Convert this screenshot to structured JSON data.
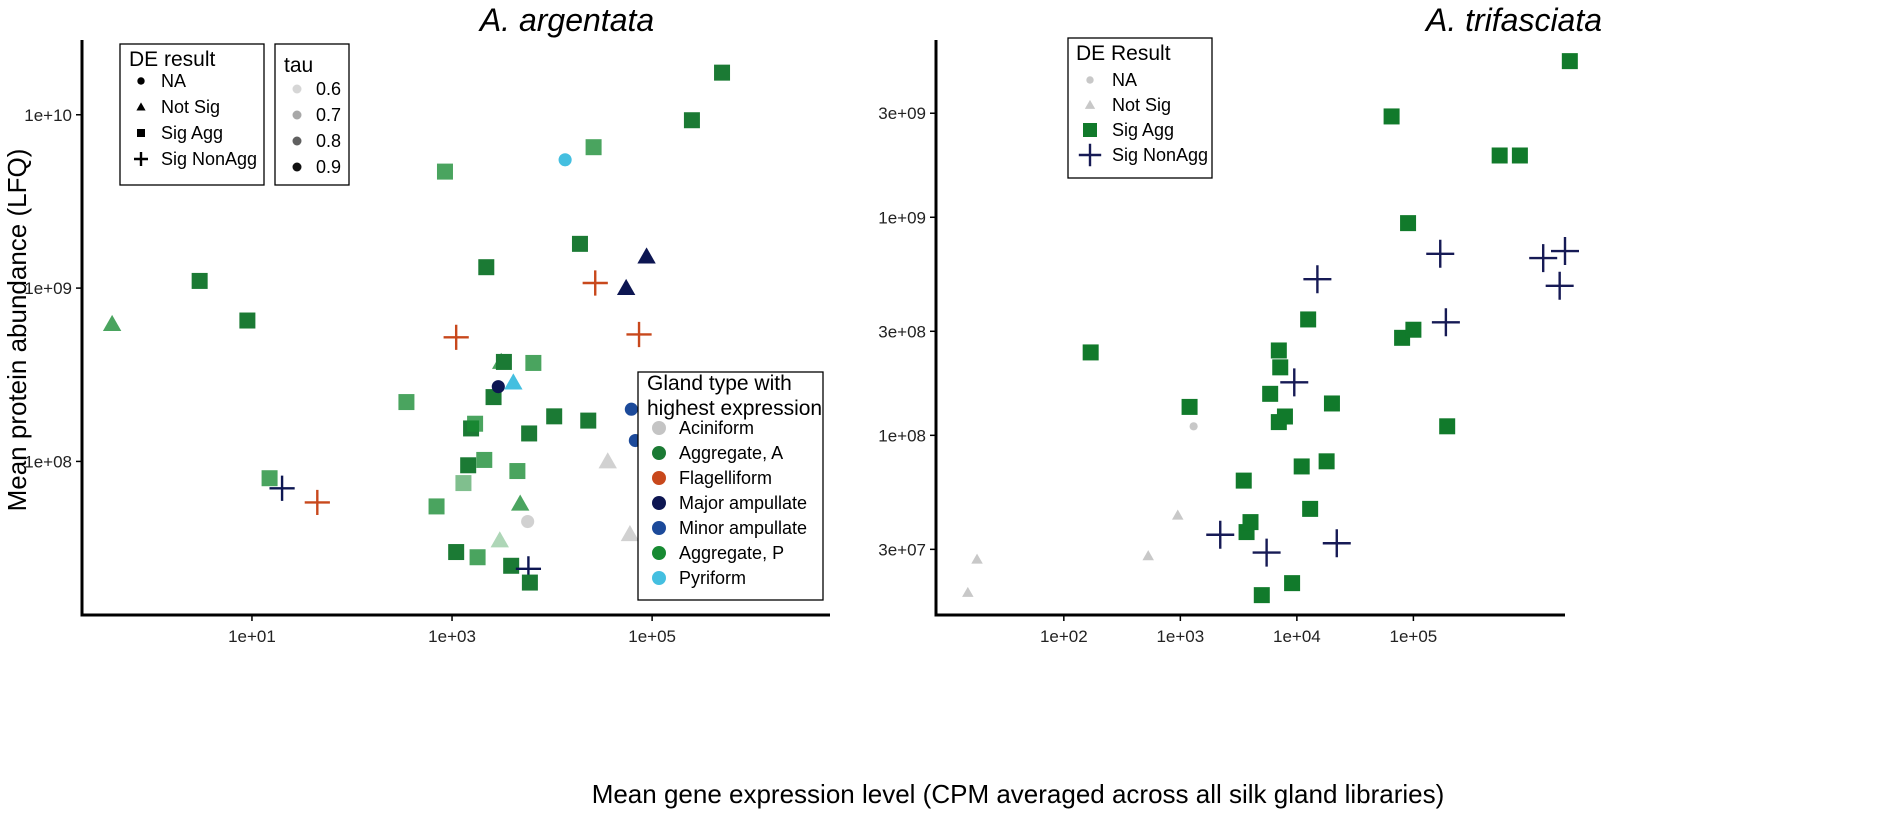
{
  "colors": {
    "Aciniform": "#c4c4c4",
    "Aggregate, A": "#1b7a34",
    "Flagelliform": "#c8481c",
    "Major ampullate": "#0d1652",
    "Minor ampullate": "#1c4a9a",
    "Aggregate, P": "#178a32",
    "Pyriform": "#44bfe0",
    "trif_grey": "#c8c8c8",
    "trif_green": "#117a2b",
    "trif_navy": "#161a55"
  },
  "chart_data": [
    {
      "type": "scatter",
      "title": "A. argentata",
      "xlabel": "Mean gene expression level (CPM averaged across all silk gland libraries)",
      "ylabel": "Mean protein abundance (LFQ)",
      "xscale": "log10",
      "yscale": "log10",
      "xlim": [
        0.2,
        6000000
      ],
      "ylim": [
        13000000,
        27000000000
      ],
      "xticks": [
        10,
        1000,
        100000
      ],
      "xtick_labels": [
        "1e+01",
        "1e+03",
        "1e+05"
      ],
      "yticks": [
        100000000,
        1000000000,
        10000000000
      ],
      "ytick_labels": [
        "1e+08",
        "1e+09",
        "1e+10"
      ],
      "legends": {
        "de": {
          "title": "DE result",
          "items": [
            {
              "label": "NA",
              "shape": "circle"
            },
            {
              "label": "Not Sig",
              "shape": "triangle"
            },
            {
              "label": "Sig Agg",
              "shape": "square"
            },
            {
              "label": "Sig NonAgg",
              "shape": "plus"
            }
          ]
        },
        "tau": {
          "title": "tau",
          "items": [
            {
              "label": "0.6",
              "shade": "#d6d6d6"
            },
            {
              "label": "0.7",
              "shade": "#a8a8a8"
            },
            {
              "label": "0.8",
              "shade": "#606060"
            },
            {
              "label": "0.9",
              "shade": "#111111"
            }
          ]
        },
        "gland": {
          "title_lines": [
            "Gland type with",
            "highest expression"
          ],
          "items": [
            "Aciniform",
            "Aggregate, A",
            "Flagelliform",
            "Major ampullate",
            "Minor ampullate",
            "Aggregate, P",
            "Pyriform"
          ]
        }
      },
      "points": [
        {
          "x": 0.4,
          "y": 620000000,
          "shape": "triangle",
          "gland": "Aggregate, P",
          "tau": 0.8
        },
        {
          "x": 3,
          "y": 1100000000,
          "shape": "square",
          "gland": "Aggregate, A",
          "tau": 0.9
        },
        {
          "x": 9,
          "y": 650000000,
          "shape": "square",
          "gland": "Aggregate, A",
          "tau": 0.9
        },
        {
          "x": 15,
          "y": 80000000,
          "shape": "square",
          "gland": "Aggregate, P",
          "tau": 0.8
        },
        {
          "x": 20,
          "y": 70000000,
          "shape": "plus",
          "gland": "Major ampullate",
          "tau": 0.9
        },
        {
          "x": 45,
          "y": 58000000,
          "shape": "plus",
          "gland": "Flagelliform",
          "tau": 0.9
        },
        {
          "x": 350,
          "y": 220000000,
          "shape": "square",
          "gland": "Aggregate, P",
          "tau": 0.8
        },
        {
          "x": 700,
          "y": 55000000,
          "shape": "square",
          "gland": "Aggregate, P",
          "tau": 0.8
        },
        {
          "x": 850,
          "y": 4700000000,
          "shape": "square",
          "gland": "Aggregate, P",
          "tau": 0.8
        },
        {
          "x": 1100,
          "y": 30000000,
          "shape": "square",
          "gland": "Aggregate, A",
          "tau": 0.9
        },
        {
          "x": 1100,
          "y": 520000000,
          "shape": "plus",
          "gland": "Flagelliform",
          "tau": 0.9
        },
        {
          "x": 1300,
          "y": 75000000,
          "shape": "square",
          "gland": "Aggregate, P",
          "tau": 0.7
        },
        {
          "x": 1450,
          "y": 95000000,
          "shape": "square",
          "gland": "Aggregate, A",
          "tau": 0.9
        },
        {
          "x": 1550,
          "y": 155000000,
          "shape": "square",
          "gland": "Aggregate, A",
          "tau": 0.9
        },
        {
          "x": 1700,
          "y": 165000000,
          "shape": "square",
          "gland": "Aggregate, P",
          "tau": 0.8
        },
        {
          "x": 1800,
          "y": 28000000,
          "shape": "square",
          "gland": "Aggregate, P",
          "tau": 0.8
        },
        {
          "x": 2100,
          "y": 102000000,
          "shape": "square",
          "gland": "Aggregate, P",
          "tau": 0.8
        },
        {
          "x": 2200,
          "y": 1320000000,
          "shape": "square",
          "gland": "Aggregate, A",
          "tau": 0.9
        },
        {
          "x": 2600,
          "y": 235000000,
          "shape": "square",
          "gland": "Aggregate, A",
          "tau": 0.9
        },
        {
          "x": 2900,
          "y": 270000000,
          "shape": "circle",
          "gland": "Major ampullate",
          "tau": 0.9
        },
        {
          "x": 3000,
          "y": 35000000,
          "shape": "triangle",
          "gland": "Aggregate, P",
          "tau": 0.6
        },
        {
          "x": 3100,
          "y": 375000000,
          "shape": "triangle",
          "gland": "Aggregate, P",
          "tau": 0.8
        },
        {
          "x": 3300,
          "y": 375000000,
          "shape": "square",
          "gland": "Aggregate, A",
          "tau": 0.9
        },
        {
          "x": 3900,
          "y": 25000000,
          "shape": "square",
          "gland": "Aggregate, A",
          "tau": 0.9
        },
        {
          "x": 4100,
          "y": 285000000,
          "shape": "triangle",
          "gland": "Pyriform",
          "tau": 0.9
        },
        {
          "x": 4500,
          "y": 88000000,
          "shape": "square",
          "gland": "Aggregate, P",
          "tau": 0.8
        },
        {
          "x": 4800,
          "y": 57000000,
          "shape": "triangle",
          "gland": "Aggregate, P",
          "tau": 0.8
        },
        {
          "x": 5700,
          "y": 45000000,
          "shape": "circle",
          "gland": "Aciniform",
          "tau": 0.8
        },
        {
          "x": 5800,
          "y": 24000000,
          "shape": "plus",
          "gland": "Major ampullate",
          "tau": 0.9
        },
        {
          "x": 5900,
          "y": 145000000,
          "shape": "square",
          "gland": "Aggregate, A",
          "tau": 0.9
        },
        {
          "x": 6000,
          "y": 20000000,
          "shape": "square",
          "gland": "Aggregate, A",
          "tau": 0.9
        },
        {
          "x": 6500,
          "y": 370000000,
          "shape": "square",
          "gland": "Aggregate, P",
          "tau": 0.8
        },
        {
          "x": 10500,
          "y": 182000000,
          "shape": "square",
          "gland": "Aggregate, A",
          "tau": 0.9
        },
        {
          "x": 13500,
          "y": 5500000000,
          "shape": "circle",
          "gland": "Pyriform",
          "tau": 0.9
        },
        {
          "x": 19000,
          "y": 1800000000,
          "shape": "square",
          "gland": "Aggregate, A",
          "tau": 0.9
        },
        {
          "x": 23000,
          "y": 172000000,
          "shape": "square",
          "gland": "Aggregate, A",
          "tau": 0.9
        },
        {
          "x": 26000,
          "y": 6500000000,
          "shape": "square",
          "gland": "Aggregate, P",
          "tau": 0.8
        },
        {
          "x": 27000,
          "y": 1070000000,
          "shape": "plus",
          "gland": "Flagelliform",
          "tau": 0.9
        },
        {
          "x": 36000,
          "y": 100000000,
          "shape": "triangle",
          "gland": "Aciniform",
          "tau": 0.8
        },
        {
          "x": 55000,
          "y": 1000000000,
          "shape": "triangle",
          "gland": "Major ampullate",
          "tau": 0.9
        },
        {
          "x": 60000,
          "y": 38000000,
          "shape": "triangle",
          "gland": "Aciniform",
          "tau": 0.8
        },
        {
          "x": 62000,
          "y": 200000000,
          "shape": "circle",
          "gland": "Minor ampullate",
          "tau": 0.9
        },
        {
          "x": 68000,
          "y": 132000000,
          "shape": "circle",
          "gland": "Minor ampullate",
          "tau": 0.9
        },
        {
          "x": 74000,
          "y": 540000000,
          "shape": "plus",
          "gland": "Flagelliform",
          "tau": 0.9
        },
        {
          "x": 88000,
          "y": 1520000000,
          "shape": "triangle",
          "gland": "Major ampullate",
          "tau": 0.9
        },
        {
          "x": 250000,
          "y": 9300000000,
          "shape": "square",
          "gland": "Aggregate, A",
          "tau": 0.9
        },
        {
          "x": 500000,
          "y": 17500000000,
          "shape": "square",
          "gland": "Aggregate, A",
          "tau": 0.9
        }
      ]
    },
    {
      "type": "scatter",
      "title": "A. trifasciata",
      "xscale": "log10",
      "yscale": "log10",
      "xlim": [
        8,
        2000000
      ],
      "ylim": [
        15000000,
        6500000000
      ],
      "xticks": [
        100,
        1000,
        10000,
        100000
      ],
      "xtick_labels": [
        "1e+02",
        "1e+03",
        "1e+04",
        "1e+05"
      ],
      "yticks": [
        30000000,
        100000000,
        300000000,
        1000000000,
        3000000000
      ],
      "ytick_labels": [
        "3e+07",
        "1e+08",
        "3e+08",
        "1e+09",
        "3e+09"
      ],
      "legends": {
        "de": {
          "title": "DE Result",
          "items": [
            {
              "label": "NA",
              "shape": "circle"
            },
            {
              "label": "Not Sig",
              "shape": "triangle"
            },
            {
              "label": "Sig Agg",
              "shape": "square"
            },
            {
              "label": "Sig NonAgg",
              "shape": "plus"
            }
          ]
        }
      },
      "points": [
        {
          "x": 15,
          "y": 19000000,
          "shape": "triangle"
        },
        {
          "x": 18,
          "y": 27000000,
          "shape": "triangle"
        },
        {
          "x": 170,
          "y": 240000000,
          "shape": "square"
        },
        {
          "x": 530,
          "y": 28000000,
          "shape": "triangle"
        },
        {
          "x": 950,
          "y": 43000000,
          "shape": "triangle"
        },
        {
          "x": 1200,
          "y": 135000000,
          "shape": "square"
        },
        {
          "x": 1300,
          "y": 110000000,
          "shape": "circle"
        },
        {
          "x": 2200,
          "y": 35000000,
          "shape": "plus"
        },
        {
          "x": 3700,
          "y": 36000000,
          "shape": "square"
        },
        {
          "x": 4000,
          "y": 40000000,
          "shape": "square"
        },
        {
          "x": 3500,
          "y": 62000000,
          "shape": "square"
        },
        {
          "x": 5000,
          "y": 18500000,
          "shape": "square"
        },
        {
          "x": 5500,
          "y": 29000000,
          "shape": "plus"
        },
        {
          "x": 5900,
          "y": 155000000,
          "shape": "square"
        },
        {
          "x": 7000,
          "y": 115000000,
          "shape": "square"
        },
        {
          "x": 7000,
          "y": 245000000,
          "shape": "square"
        },
        {
          "x": 7200,
          "y": 205000000,
          "shape": "square"
        },
        {
          "x": 7900,
          "y": 122000000,
          "shape": "square"
        },
        {
          "x": 9100,
          "y": 21000000,
          "shape": "square"
        },
        {
          "x": 9500,
          "y": 175000000,
          "shape": "plus"
        },
        {
          "x": 11000,
          "y": 72000000,
          "shape": "square"
        },
        {
          "x": 12500,
          "y": 340000000,
          "shape": "square"
        },
        {
          "x": 13000,
          "y": 46000000,
          "shape": "square"
        },
        {
          "x": 15000,
          "y": 520000000,
          "shape": "plus"
        },
        {
          "x": 18000,
          "y": 76000000,
          "shape": "square"
        },
        {
          "x": 20000,
          "y": 140000000,
          "shape": "square"
        },
        {
          "x": 22000,
          "y": 32000000,
          "shape": "plus"
        },
        {
          "x": 65000,
          "y": 2900000000,
          "shape": "square"
        },
        {
          "x": 80000,
          "y": 280000000,
          "shape": "square"
        },
        {
          "x": 90000,
          "y": 940000000,
          "shape": "square"
        },
        {
          "x": 100000,
          "y": 305000000,
          "shape": "square"
        },
        {
          "x": 170000,
          "y": 680000000,
          "shape": "plus"
        },
        {
          "x": 190000,
          "y": 330000000,
          "shape": "plus"
        },
        {
          "x": 195000,
          "y": 110000000,
          "shape": "square"
        },
        {
          "x": 550000,
          "y": 1920000000,
          "shape": "square"
        },
        {
          "x": 820000,
          "y": 1920000000,
          "shape": "square"
        },
        {
          "x": 1300000,
          "y": 650000000,
          "shape": "plus"
        },
        {
          "x": 1800000,
          "y": 485000000,
          "shape": "plus"
        },
        {
          "x": 2000000,
          "y": 700000000,
          "shape": "plus"
        },
        {
          "x": 2200000,
          "y": 5200000000,
          "shape": "square"
        }
      ]
    }
  ]
}
